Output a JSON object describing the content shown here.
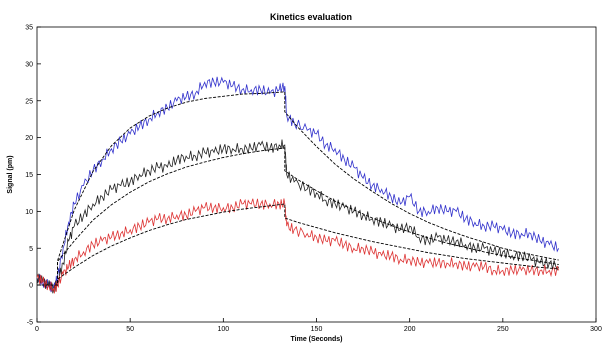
{
  "chart_data": {
    "type": "line",
    "title": "Kinetics evaluation",
    "xlabel": "Time (Seconds)",
    "ylabel": "Signal (pm)",
    "xlim": [
      0,
      300
    ],
    "ylim": [
      -5,
      35
    ],
    "x_ticks": [
      0,
      50,
      100,
      150,
      200,
      250,
      300
    ],
    "y_ticks": [
      -5,
      0,
      5,
      10,
      15,
      20,
      25,
      30,
      35
    ],
    "grid": false,
    "legend": "none",
    "series": [
      {
        "color": "#3333cc",
        "style": "measured",
        "x": [
          0,
          3,
          6,
          9,
          11,
          14,
          17,
          20,
          25,
          30,
          35,
          40,
          45,
          50,
          55,
          60,
          65,
          70,
          75,
          80,
          85,
          90,
          95,
          100,
          105,
          110,
          115,
          120,
          125,
          130,
          133,
          134,
          138,
          145,
          150,
          155,
          160,
          165,
          170,
          175,
          180,
          185,
          190,
          195,
          200,
          205,
          210,
          215,
          220,
          225,
          230,
          235,
          240,
          245,
          250,
          255,
          260,
          265,
          270,
          275,
          280
        ],
        "y": [
          1,
          0.5,
          0,
          -0.5,
          1,
          5,
          8.5,
          11,
          13.5,
          15.5,
          17,
          18.5,
          19.5,
          20.5,
          21.5,
          22.5,
          23.5,
          24,
          25,
          25.5,
          26,
          27.5,
          27.5,
          27.5,
          27,
          26.5,
          26.5,
          26.5,
          26,
          26.5,
          27,
          23,
          22,
          21,
          20.5,
          19,
          18.5,
          17,
          16,
          14.5,
          13.5,
          13,
          12,
          11,
          12,
          10,
          10,
          10.5,
          10,
          10,
          9,
          8.5,
          8,
          8,
          7.5,
          7,
          7,
          7,
          6,
          5.5,
          5
        ]
      },
      {
        "color": "#222222",
        "style": "measured",
        "x": [
          0,
          3,
          6,
          9,
          11,
          14,
          17,
          20,
          25,
          30,
          35,
          40,
          45,
          50,
          55,
          60,
          65,
          70,
          75,
          80,
          85,
          90,
          95,
          100,
          105,
          110,
          115,
          120,
          125,
          130,
          133,
          134,
          138,
          145,
          150,
          155,
          160,
          165,
          170,
          175,
          180,
          185,
          190,
          195,
          200,
          205,
          210,
          215,
          220,
          225,
          230,
          235,
          240,
          245,
          250,
          255,
          260,
          265,
          270,
          275,
          280
        ],
        "y": [
          1,
          0.5,
          0,
          -0.5,
          0.5,
          3,
          6,
          8,
          9.5,
          11,
          12,
          13,
          13.5,
          14,
          15,
          15.5,
          16,
          16,
          17,
          17.5,
          17.5,
          18,
          18,
          18.5,
          18.5,
          18.5,
          18.5,
          19,
          18.5,
          19,
          19,
          15,
          14,
          13,
          12.5,
          11.5,
          11,
          10.5,
          10,
          9.5,
          9,
          8.5,
          8,
          7.5,
          8,
          6.5,
          6,
          6.5,
          6,
          6,
          5.5,
          5,
          5,
          4.5,
          4.5,
          4,
          4,
          3.5,
          3,
          3,
          2.5
        ]
      },
      {
        "color": "#dd3333",
        "style": "measured",
        "x": [
          0,
          3,
          6,
          9,
          11,
          14,
          17,
          20,
          25,
          30,
          35,
          40,
          45,
          50,
          55,
          60,
          65,
          70,
          75,
          80,
          85,
          90,
          95,
          100,
          105,
          110,
          115,
          120,
          125,
          130,
          133,
          134,
          138,
          145,
          150,
          155,
          160,
          165,
          170,
          175,
          180,
          185,
          190,
          195,
          200,
          205,
          210,
          215,
          220,
          225,
          230,
          235,
          240,
          245,
          250,
          255,
          260,
          265,
          270,
          275,
          280
        ],
        "y": [
          1,
          0.5,
          0,
          -0.5,
          0,
          1.5,
          2.5,
          3.5,
          4.5,
          5.5,
          6,
          6.5,
          7,
          7.5,
          8,
          8.5,
          9,
          9,
          9.5,
          9.5,
          10,
          10.5,
          10.5,
          10.5,
          10.5,
          11,
          11,
          11,
          11,
          11,
          11,
          8,
          7.5,
          7,
          6.5,
          6,
          6,
          5.5,
          5,
          5,
          4.5,
          4,
          4,
          3.5,
          3.5,
          3,
          3,
          3,
          3,
          3,
          2.5,
          2.5,
          2.5,
          2,
          2,
          2,
          2,
          2,
          2,
          2,
          2
        ]
      },
      {
        "color": "#000000",
        "style": "fit",
        "x": [
          0,
          11,
          11,
          20,
          30,
          40,
          50,
          60,
          70,
          80,
          90,
          100,
          110,
          120,
          133,
          133,
          140,
          150,
          160,
          170,
          180,
          190,
          200,
          210,
          220,
          230,
          240,
          250,
          260,
          270,
          280
        ],
        "y": [
          0,
          0,
          3.3,
          10.2,
          15.4,
          18.9,
          21.3,
          22.9,
          24.0,
          24.8,
          25.3,
          25.6,
          25.9,
          26.0,
          26.2,
          23.5,
          21.4,
          18.8,
          16.4,
          14.4,
          12.7,
          11.1,
          9.7,
          8.5,
          7.5,
          6.6,
          5.8,
          5.0,
          4.4,
          3.9,
          3.4
        ]
      },
      {
        "color": "#000000",
        "style": "fit",
        "x": [
          0,
          11,
          11,
          20,
          30,
          40,
          50,
          60,
          70,
          80,
          90,
          100,
          110,
          120,
          133,
          133,
          140,
          150,
          160,
          170,
          180,
          190,
          200,
          210,
          220,
          230,
          240,
          250,
          260,
          270,
          280
        ],
        "y": [
          0,
          0,
          3.2,
          6.0,
          8.8,
          10.9,
          12.6,
          14.0,
          15.1,
          16.0,
          16.7,
          17.3,
          17.8,
          18.2,
          18.6,
          15.5,
          14.3,
          12.8,
          11.4,
          10.2,
          9.1,
          8.1,
          7.2,
          6.4,
          5.7,
          5.1,
          4.5,
          4.0,
          3.6,
          3.2,
          2.8
        ]
      },
      {
        "color": "#000000",
        "style": "fit",
        "x": [
          0,
          11,
          11,
          20,
          30,
          40,
          50,
          60,
          70,
          80,
          90,
          100,
          110,
          120,
          133,
          133,
          140,
          150,
          160,
          170,
          180,
          190,
          200,
          210,
          220,
          230,
          240,
          250,
          260,
          270,
          280
        ],
        "y": [
          0,
          0,
          0.8,
          2.4,
          4.0,
          5.3,
          6.4,
          7.4,
          8.2,
          8.9,
          9.4,
          9.9,
          10.3,
          10.6,
          11.0,
          9.1,
          8.5,
          7.8,
          7.1,
          6.5,
          5.9,
          5.4,
          4.9,
          4.4,
          4.0,
          3.6,
          3.3,
          3.0,
          2.7,
          2.4,
          2.2
        ]
      }
    ]
  }
}
